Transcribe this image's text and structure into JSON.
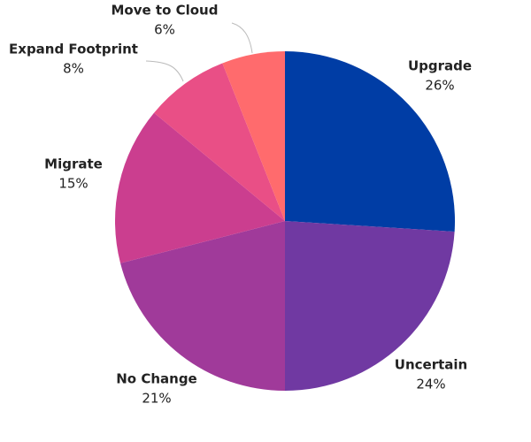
{
  "chart_data": {
    "type": "pie",
    "categories": [
      "Upgrade",
      "Uncertain",
      "No Change",
      "Migrate",
      "Expand Footprint",
      "Move to Cloud"
    ],
    "values": [
      26,
      24,
      21,
      15,
      8,
      6
    ],
    "value_labels": [
      "26%",
      "24%",
      "21%",
      "15%",
      "8%",
      "6%"
    ],
    "colors": [
      "#003da5",
      "#7039a2",
      "#a03a9a",
      "#cb3e8f",
      "#e94f86",
      "#ff6b6d"
    ]
  }
}
